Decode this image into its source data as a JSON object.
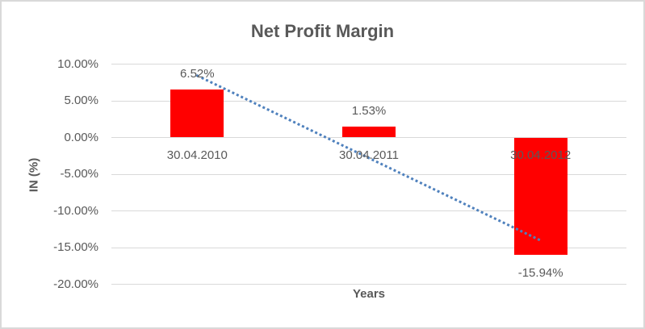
{
  "chart_data": {
    "type": "bar",
    "title": "Net Profit Margin",
    "xlabel": "Years",
    "ylabel": "IN (%)",
    "categories": [
      "30.04.2010",
      "30.04.2011",
      "30.04.2012"
    ],
    "values": [
      6.52,
      1.53,
      -15.94
    ],
    "data_labels": [
      "6.52%",
      "1.53%",
      "-15.94%"
    ],
    "y_tick_labels": [
      "10.00%",
      "5.00%",
      "0.00%",
      "-5.00%",
      "-10.00%",
      "-15.00%",
      "-20.00%"
    ],
    "ylim": [
      -20,
      10
    ],
    "y_tick_step": 5,
    "grid": true,
    "legend": "none",
    "trendline": {
      "type": "linear",
      "style": "dotted",
      "color": "#4F81BD"
    },
    "bar_color": "#FF0000",
    "colors": {
      "text": "#595959",
      "gridline": "#D9D9D9",
      "border": "#D9D9D9",
      "background": "#FFFFFF"
    }
  }
}
